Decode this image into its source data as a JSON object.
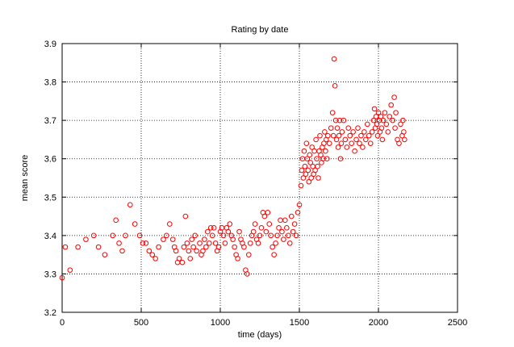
{
  "chart_data": {
    "type": "scatter",
    "title": "Rating by date",
    "xlabel": "time (days)",
    "ylabel": "mean score",
    "xlim": [
      0,
      2500
    ],
    "ylim": [
      3.2,
      3.9
    ],
    "xticks": [
      0,
      500,
      1000,
      1500,
      2000,
      2500
    ],
    "yticks": [
      3.2,
      3.3,
      3.4,
      3.5,
      3.6,
      3.7,
      3.8,
      3.9
    ],
    "ytick_labels": [
      "3.2",
      "3.3",
      "3.4",
      "3.5",
      "3.6",
      "3.7",
      "3.8",
      "3.9"
    ],
    "grid": true,
    "marker": "open-circle",
    "color": "#ff0000",
    "points": [
      [
        0,
        3.29
      ],
      [
        20,
        3.37
      ],
      [
        50,
        3.31
      ],
      [
        100,
        3.37
      ],
      [
        150,
        3.39
      ],
      [
        200,
        3.4
      ],
      [
        230,
        3.37
      ],
      [
        270,
        3.35
      ],
      [
        320,
        3.4
      ],
      [
        340,
        3.44
      ],
      [
        360,
        3.38
      ],
      [
        380,
        3.36
      ],
      [
        400,
        3.4
      ],
      [
        430,
        3.48
      ],
      [
        460,
        3.43
      ],
      [
        490,
        3.4
      ],
      [
        510,
        3.38
      ],
      [
        530,
        3.38
      ],
      [
        550,
        3.36
      ],
      [
        570,
        3.35
      ],
      [
        590,
        3.34
      ],
      [
        610,
        3.37
      ],
      [
        640,
        3.39
      ],
      [
        660,
        3.4
      ],
      [
        680,
        3.43
      ],
      [
        700,
        3.39
      ],
      [
        710,
        3.37
      ],
      [
        720,
        3.36
      ],
      [
        730,
        3.33
      ],
      [
        740,
        3.34
      ],
      [
        760,
        3.33
      ],
      [
        770,
        3.37
      ],
      [
        780,
        3.45
      ],
      [
        790,
        3.38
      ],
      [
        800,
        3.36
      ],
      [
        810,
        3.34
      ],
      [
        820,
        3.39
      ],
      [
        830,
        3.37
      ],
      [
        840,
        3.4
      ],
      [
        850,
        3.36
      ],
      [
        870,
        3.38
      ],
      [
        880,
        3.35
      ],
      [
        890,
        3.36
      ],
      [
        900,
        3.39
      ],
      [
        910,
        3.37
      ],
      [
        920,
        3.41
      ],
      [
        930,
        3.38
      ],
      [
        940,
        3.42
      ],
      [
        950,
        3.4
      ],
      [
        960,
        3.42
      ],
      [
        970,
        3.38
      ],
      [
        980,
        3.36
      ],
      [
        990,
        3.37
      ],
      [
        1000,
        3.41
      ],
      [
        1010,
        3.42
      ],
      [
        1020,
        3.4
      ],
      [
        1030,
        3.38
      ],
      [
        1040,
        3.42
      ],
      [
        1050,
        3.41
      ],
      [
        1060,
        3.43
      ],
      [
        1070,
        3.4
      ],
      [
        1080,
        3.39
      ],
      [
        1090,
        3.37
      ],
      [
        1100,
        3.35
      ],
      [
        1110,
        3.34
      ],
      [
        1120,
        3.41
      ],
      [
        1130,
        3.39
      ],
      [
        1140,
        3.38
      ],
      [
        1150,
        3.37
      ],
      [
        1160,
        3.31
      ],
      [
        1170,
        3.3
      ],
      [
        1180,
        3.35
      ],
      [
        1190,
        3.38
      ],
      [
        1200,
        3.4
      ],
      [
        1210,
        3.41
      ],
      [
        1220,
        3.43
      ],
      [
        1230,
        3.39
      ],
      [
        1240,
        3.38
      ],
      [
        1250,
        3.4
      ],
      [
        1260,
        3.42
      ],
      [
        1270,
        3.46
      ],
      [
        1280,
        3.45
      ],
      [
        1290,
        3.41
      ],
      [
        1300,
        3.46
      ],
      [
        1310,
        3.43
      ],
      [
        1320,
        3.4
      ],
      [
        1330,
        3.37
      ],
      [
        1340,
        3.35
      ],
      [
        1350,
        3.38
      ],
      [
        1360,
        3.4
      ],
      [
        1370,
        3.42
      ],
      [
        1380,
        3.44
      ],
      [
        1390,
        3.41
      ],
      [
        1400,
        3.39
      ],
      [
        1410,
        3.44
      ],
      [
        1420,
        3.42
      ],
      [
        1430,
        3.4
      ],
      [
        1440,
        3.38
      ],
      [
        1450,
        3.45
      ],
      [
        1460,
        3.41
      ],
      [
        1470,
        3.43
      ],
      [
        1480,
        3.4
      ],
      [
        1490,
        3.46
      ],
      [
        1500,
        3.48
      ],
      [
        1510,
        3.53
      ],
      [
        1515,
        3.57
      ],
      [
        1520,
        3.6
      ],
      [
        1525,
        3.55
      ],
      [
        1530,
        3.62
      ],
      [
        1535,
        3.58
      ],
      [
        1540,
        3.56
      ],
      [
        1545,
        3.64
      ],
      [
        1550,
        3.6
      ],
      [
        1555,
        3.57
      ],
      [
        1560,
        3.54
      ],
      [
        1565,
        3.61
      ],
      [
        1570,
        3.59
      ],
      [
        1575,
        3.55
      ],
      [
        1580,
        3.63
      ],
      [
        1585,
        3.58
      ],
      [
        1590,
        3.56
      ],
      [
        1595,
        3.62
      ],
      [
        1600,
        3.57
      ],
      [
        1605,
        3.65
      ],
      [
        1610,
        3.6
      ],
      [
        1615,
        3.58
      ],
      [
        1620,
        3.55
      ],
      [
        1625,
        3.62
      ],
      [
        1630,
        3.66
      ],
      [
        1635,
        3.61
      ],
      [
        1640,
        3.59
      ],
      [
        1645,
        3.63
      ],
      [
        1650,
        3.6
      ],
      [
        1655,
        3.64
      ],
      [
        1660,
        3.67
      ],
      [
        1665,
        3.62
      ],
      [
        1670,
        3.65
      ],
      [
        1675,
        3.6
      ],
      [
        1680,
        3.66
      ],
      [
        1690,
        3.64
      ],
      [
        1700,
        3.68
      ],
      [
        1710,
        3.72
      ],
      [
        1715,
        3.66
      ],
      [
        1720,
        3.86
      ],
      [
        1725,
        3.79
      ],
      [
        1730,
        3.7
      ],
      [
        1735,
        3.65
      ],
      [
        1740,
        3.68
      ],
      [
        1745,
        3.63
      ],
      [
        1750,
        3.66
      ],
      [
        1755,
        3.7
      ],
      [
        1760,
        3.6
      ],
      [
        1765,
        3.64
      ],
      [
        1770,
        3.67
      ],
      [
        1780,
        3.7
      ],
      [
        1790,
        3.65
      ],
      [
        1800,
        3.63
      ],
      [
        1810,
        3.68
      ],
      [
        1820,
        3.66
      ],
      [
        1830,
        3.64
      ],
      [
        1840,
        3.67
      ],
      [
        1850,
        3.62
      ],
      [
        1860,
        3.65
      ],
      [
        1870,
        3.68
      ],
      [
        1880,
        3.64
      ],
      [
        1890,
        3.66
      ],
      [
        1900,
        3.63
      ],
      [
        1910,
        3.67
      ],
      [
        1920,
        3.65
      ],
      [
        1930,
        3.69
      ],
      [
        1940,
        3.66
      ],
      [
        1950,
        3.64
      ],
      [
        1960,
        3.67
      ],
      [
        1970,
        3.7
      ],
      [
        1975,
        3.73
      ],
      [
        1980,
        3.68
      ],
      [
        1985,
        3.71
      ],
      [
        1990,
        3.69
      ],
      [
        1995,
        3.66
      ],
      [
        2000,
        3.72
      ],
      [
        2005,
        3.7
      ],
      [
        2010,
        3.67
      ],
      [
        2015,
        3.71
      ],
      [
        2020,
        3.68
      ],
      [
        2025,
        3.65
      ],
      [
        2030,
        3.7
      ],
      [
        2040,
        3.72
      ],
      [
        2050,
        3.69
      ],
      [
        2060,
        3.67
      ],
      [
        2070,
        3.71
      ],
      [
        2080,
        3.74
      ],
      [
        2090,
        3.7
      ],
      [
        2100,
        3.76
      ],
      [
        2105,
        3.68
      ],
      [
        2110,
        3.72
      ],
      [
        2120,
        3.65
      ],
      [
        2130,
        3.64
      ],
      [
        2140,
        3.69
      ],
      [
        2150,
        3.66
      ],
      [
        2155,
        3.7
      ],
      [
        2160,
        3.67
      ],
      [
        2165,
        3.65
      ]
    ]
  }
}
